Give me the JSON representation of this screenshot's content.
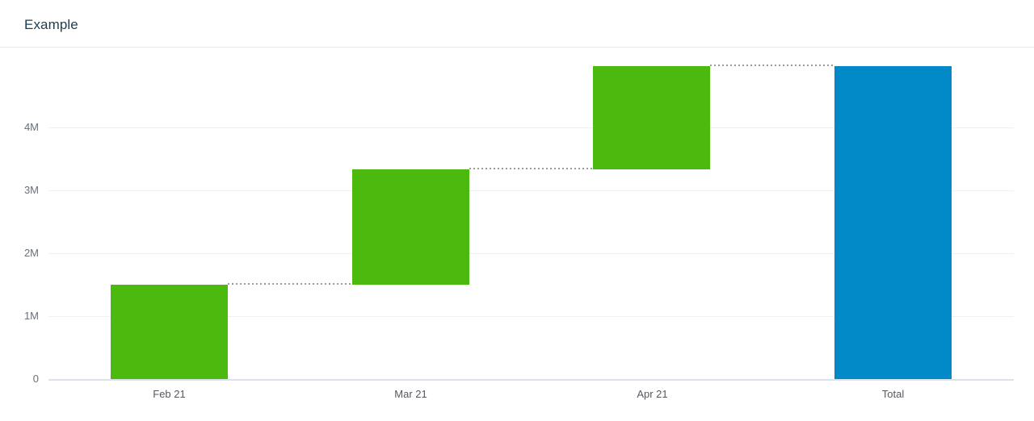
{
  "header": {
    "title": "Example"
  },
  "chart_data": {
    "type": "bar",
    "subtype": "waterfall",
    "title": "Example",
    "xlabel": "",
    "ylabel": "",
    "categories": [
      "Feb 21",
      "Mar 21",
      "Apr 21",
      "Total"
    ],
    "steps": [
      {
        "label": "Feb 21",
        "value": 1500000,
        "start": 0,
        "end": 1500000,
        "role": "increase"
      },
      {
        "label": "Mar 21",
        "value": 1830000,
        "start": 1500000,
        "end": 3330000,
        "role": "increase"
      },
      {
        "label": "Apr 21",
        "value": 1640000,
        "start": 3330000,
        "end": 4970000,
        "role": "increase"
      },
      {
        "label": "Total",
        "value": 4970000,
        "start": 0,
        "end": 4970000,
        "role": "total"
      }
    ],
    "y_ticks": [
      {
        "value": 0,
        "label": "0"
      },
      {
        "value": 1000000,
        "label": "1M"
      },
      {
        "value": 2000000,
        "label": "2M"
      },
      {
        "value": 3000000,
        "label": "3M"
      },
      {
        "value": 4000000,
        "label": "4M"
      }
    ],
    "ylim": [
      0,
      5000000
    ],
    "grid": true,
    "legend": false,
    "connector_style": "dotted",
    "colors": {
      "increase": "#4cb90e",
      "total": "#0289c8",
      "connector": "#9b9b9b",
      "gridline": "#f0f0f1",
      "zero_line": "#dce1ee",
      "title_text": "#1c3e52",
      "axis_label_text": "#6a7076",
      "category_label_text": "#55595f"
    }
  }
}
